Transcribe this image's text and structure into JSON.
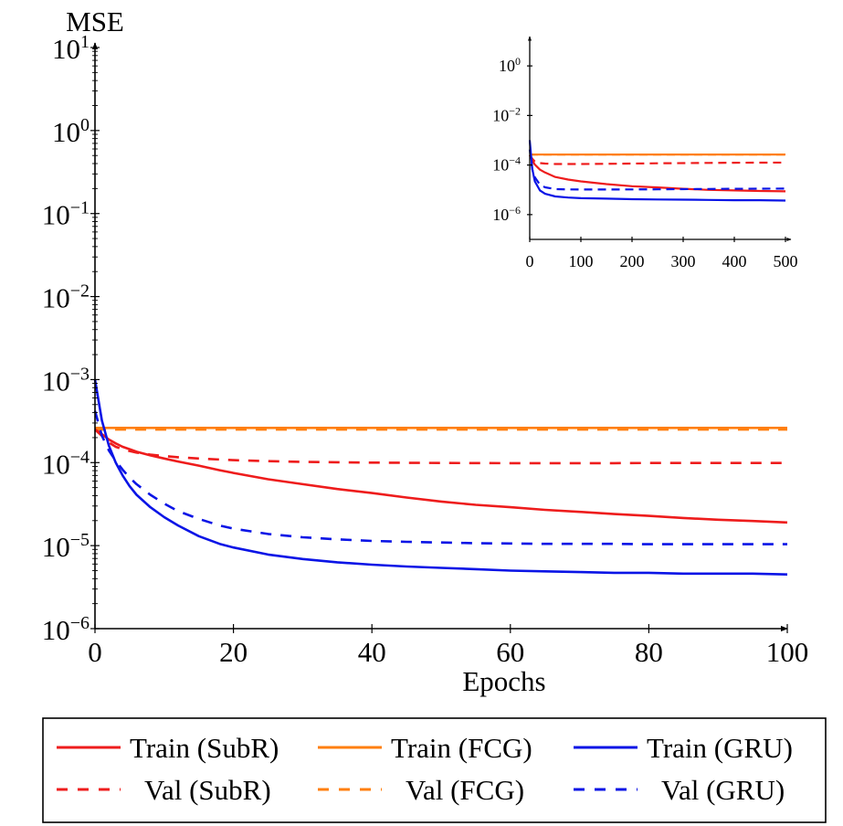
{
  "chart_data": [
    {
      "type": "line",
      "title": "",
      "xlabel": "Epochs",
      "ylabel": "MSE",
      "yscale": "log",
      "xlim": [
        0,
        100
      ],
      "ylim": [
        1e-06,
        10
      ],
      "grid": false,
      "x_ticks": [
        "0",
        "20",
        "40",
        "60",
        "80",
        "100"
      ],
      "y_ticks": [
        {
          "base": "10",
          "exp": "−6"
        },
        {
          "base": "10",
          "exp": "−5"
        },
        {
          "base": "10",
          "exp": "−4"
        },
        {
          "base": "10",
          "exp": "−3"
        },
        {
          "base": "10",
          "exp": "−2"
        },
        {
          "base": "10",
          "exp": "−1"
        },
        {
          "base": "10",
          "exp": "0"
        },
        {
          "base": "10",
          "exp": "1"
        }
      ],
      "x": [
        0,
        1,
        2,
        3,
        4,
        5,
        6,
        8,
        10,
        12,
        15,
        18,
        20,
        25,
        30,
        35,
        40,
        45,
        50,
        55,
        60,
        65,
        70,
        75,
        80,
        85,
        90,
        95,
        100
      ],
      "series": [
        {
          "name": "Train (SubR)",
          "color": "#ee1c1c",
          "dash": "solid",
          "values": [
            0.00025,
            0.00022,
            0.00019,
            0.00017,
            0.000155,
            0.000145,
            0.000135,
            0.000122,
            0.000112,
            0.000103,
            9.2e-05,
            8.1e-05,
            7.5e-05,
            6.3e-05,
            5.5e-05,
            4.8e-05,
            4.3e-05,
            3.8e-05,
            3.4e-05,
            3.1e-05,
            2.9e-05,
            2.7e-05,
            2.55e-05,
            2.4e-05,
            2.28e-05,
            2.15e-05,
            2.05e-05,
            1.98e-05,
            1.9e-05
          ]
        },
        {
          "name": "Val (SubR)",
          "color": "#ee1c1c",
          "dash": "dashed",
          "values": [
            0.00025,
            0.00021,
            0.000175,
            0.000155,
            0.000145,
            0.000138,
            0.000132,
            0.000125,
            0.00012,
            0.000116,
            0.000112,
            0.000109,
            0.000107,
            0.000104,
            0.000102,
            0.000101,
            0.0001,
            9.95e-05,
            9.9e-05,
            9.88e-05,
            9.85e-05,
            9.85e-05,
            9.85e-05,
            9.85e-05,
            9.9e-05,
            9.9e-05,
            9.9e-05,
            9.9e-05,
            9.9e-05
          ]
        },
        {
          "name": "Train (FCG)",
          "color": "#ff7f0e",
          "dash": "solid",
          "values": [
            0.000262,
            0.000262,
            0.000262,
            0.000262,
            0.000262,
            0.000262,
            0.000262,
            0.000262,
            0.000262,
            0.000262,
            0.000262,
            0.000262,
            0.000262,
            0.000262,
            0.000262,
            0.000262,
            0.000262,
            0.000262,
            0.000262,
            0.000262,
            0.000262,
            0.000262,
            0.000262,
            0.000262,
            0.000262,
            0.000262,
            0.000262,
            0.000262,
            0.000262
          ]
        },
        {
          "name": "Val (FCG)",
          "color": "#ff7f0e",
          "dash": "dashed",
          "values": [
            0.00025,
            0.00025,
            0.00025,
            0.00025,
            0.00025,
            0.00025,
            0.00025,
            0.00025,
            0.00025,
            0.00025,
            0.00025,
            0.00025,
            0.00025,
            0.00025,
            0.00025,
            0.00025,
            0.00025,
            0.00025,
            0.00025,
            0.00025,
            0.00025,
            0.00025,
            0.00025,
            0.00025,
            0.00025,
            0.00025,
            0.00025,
            0.00025,
            0.00025
          ]
        },
        {
          "name": "Train (GRU)",
          "color": "#0a14e6",
          "dash": "solid",
          "values": [
            0.001,
            0.00032,
            0.00016,
            0.0001,
            7e-05,
            5.2e-05,
            4.1e-05,
            2.9e-05,
            2.2e-05,
            1.75e-05,
            1.3e-05,
            1.05e-05,
            9.5e-06,
            7.8e-06,
            6.9e-06,
            6.3e-06,
            5.9e-06,
            5.6e-06,
            5.4e-06,
            5.2e-06,
            5e-06,
            4.9e-06,
            4.8e-06,
            4.7e-06,
            4.7e-06,
            4.6e-06,
            4.6e-06,
            4.6e-06,
            4.5e-06
          ]
        },
        {
          "name": "Val (GRU)",
          "color": "#0a14e6",
          "dash": "dashed",
          "values": [
            0.00042,
            0.00021,
            0.00014,
            0.000105,
            8.2e-05,
            6.6e-05,
            5.5e-05,
            4.1e-05,
            3.2e-05,
            2.6e-05,
            2.1e-05,
            1.75e-05,
            1.6e-05,
            1.38e-05,
            1.26e-05,
            1.19e-05,
            1.14e-05,
            1.11e-05,
            1.09e-05,
            1.07e-05,
            1.06e-05,
            1.05e-05,
            1.05e-05,
            1.05e-05,
            1.04e-05,
            1.04e-05,
            1.04e-05,
            1.04e-05,
            1.04e-05
          ]
        }
      ],
      "legend": {
        "placement": "bottom",
        "entries": [
          "Train (SubR)",
          "Train (FCG)",
          "Train (GRU)",
          "Val (SubR)",
          "Val (FCG)",
          "Val (GRU)"
        ]
      }
    },
    {
      "type": "line",
      "role": "inset",
      "title": "",
      "xlabel": "",
      "ylabel": "",
      "yscale": "log",
      "xlim": [
        0,
        500
      ],
      "ylim": [
        1e-07,
        10
      ],
      "grid": false,
      "x_ticks": [
        "0",
        "100",
        "200",
        "300",
        "400",
        "500"
      ],
      "y_ticks": [
        {
          "base": "10",
          "exp": "−6"
        },
        {
          "base": "10",
          "exp": "−4"
        },
        {
          "base": "10",
          "exp": "−2"
        },
        {
          "base": "10",
          "exp": "0"
        }
      ],
      "x": [
        0,
        5,
        10,
        20,
        30,
        50,
        75,
        100,
        150,
        200,
        250,
        300,
        350,
        400,
        450,
        500
      ],
      "series": [
        {
          "name": "Train (SubR)",
          "color": "#ee1c1c",
          "dash": "solid",
          "values": [
            0.00025,
            0.00015,
            0.000105,
            6.5e-05,
            5e-05,
            3.3e-05,
            2.6e-05,
            2.2e-05,
            1.7e-05,
            1.4e-05,
            1.25e-05,
            1.1e-05,
            1e-05,
            9.5e-06,
            9e-06,
            8.7e-06
          ]
        },
        {
          "name": "Val (SubR)",
          "color": "#ee1c1c",
          "dash": "dashed",
          "values": [
            0.00025,
            0.00018,
            0.00014,
            0.00012,
            0.000115,
            0.00011,
            0.00011,
            0.00011,
            0.000112,
            0.000115,
            0.000118,
            0.00012,
            0.000122,
            0.000124,
            0.000125,
            0.000126
          ]
        },
        {
          "name": "Train (FCG)",
          "color": "#ff7f0e",
          "dash": "solid",
          "values": [
            0.000265,
            0.000265,
            0.000265,
            0.000265,
            0.000265,
            0.000265,
            0.000265,
            0.000265,
            0.000265,
            0.000265,
            0.000265,
            0.000265,
            0.000265,
            0.000265,
            0.000265,
            0.000265
          ]
        },
        {
          "name": "Val (FCG)",
          "color": "#ff7f0e",
          "dash": "dashed",
          "values": [
            0.000265,
            0.000265,
            0.000265,
            0.000265,
            0.000265,
            0.000265,
            0.000265,
            0.000265,
            0.000265,
            0.000265,
            0.000265,
            0.000265,
            0.000265,
            0.000265,
            0.000265,
            0.000265
          ]
        },
        {
          "name": "Train (GRU)",
          "color": "#0a14e6",
          "dash": "solid",
          "values": [
            0.001,
            7e-05,
            2.2e-05,
            9.5e-06,
            6.9e-06,
            5.4e-06,
            4.9e-06,
            4.6e-06,
            4.4e-06,
            4.2e-06,
            4.1e-06,
            4e-06,
            3.9e-06,
            3.8e-06,
            3.8e-06,
            3.7e-06
          ]
        },
        {
          "name": "Val (GRU)",
          "color": "#0a14e6",
          "dash": "dashed",
          "values": [
            0.00042,
            6.6e-05,
            3.2e-05,
            1.6e-05,
            1.26e-05,
            1.07e-05,
            1.04e-05,
            1.03e-05,
            1.03e-05,
            1.04e-05,
            1.05e-05,
            1.07e-05,
            1.08e-05,
            1.1e-05,
            1.11e-05,
            1.12e-05
          ]
        }
      ]
    }
  ]
}
